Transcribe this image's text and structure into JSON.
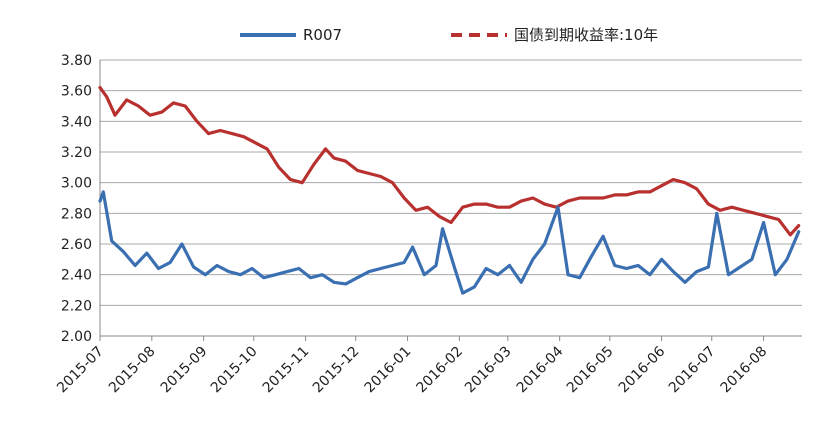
{
  "chart_data": {
    "type": "line",
    "ylim": [
      2.0,
      3.8
    ],
    "y_ticks": [
      "2.00",
      "2.20",
      "2.40",
      "2.60",
      "2.80",
      "3.00",
      "3.20",
      "3.40",
      "3.60",
      "3.80"
    ],
    "x_ticks": [
      "2015-07",
      "2015-08",
      "2015-09",
      "2015-10",
      "2015-11",
      "2015-12",
      "2016-01",
      "2016-02",
      "2016-03",
      "2016-04",
      "2016-05",
      "2016-06",
      "2016-07",
      "2016-08"
    ],
    "grid": true,
    "legend_position": "top",
    "series": [
      {
        "name": "R007",
        "color": "#3a6fb2",
        "style": "solid",
        "x": [
          "2015-07-01",
          "2015-07-03",
          "2015-07-08",
          "2015-07-15",
          "2015-07-22",
          "2015-07-29",
          "2015-08-05",
          "2015-08-12",
          "2015-08-19",
          "2015-08-26",
          "2015-09-02",
          "2015-09-09",
          "2015-09-16",
          "2015-09-23",
          "2015-09-30",
          "2015-10-07",
          "2015-10-14",
          "2015-10-21",
          "2015-10-28",
          "2015-11-04",
          "2015-11-11",
          "2015-11-18",
          "2015-11-25",
          "2015-12-02",
          "2015-12-09",
          "2015-12-16",
          "2015-12-23",
          "2015-12-30",
          "2016-01-04",
          "2016-01-11",
          "2016-01-18",
          "2016-01-22",
          "2016-01-29",
          "2016-02-03",
          "2016-02-10",
          "2016-02-17",
          "2016-02-24",
          "2016-03-02",
          "2016-03-09",
          "2016-03-16",
          "2016-03-23",
          "2016-03-31",
          "2016-04-06",
          "2016-04-13",
          "2016-04-20",
          "2016-04-27",
          "2016-05-04",
          "2016-05-11",
          "2016-05-18",
          "2016-05-25",
          "2016-06-01",
          "2016-06-08",
          "2016-06-15",
          "2016-06-22",
          "2016-06-29",
          "2016-07-04",
          "2016-07-11",
          "2016-07-18",
          "2016-07-25",
          "2016-08-01",
          "2016-08-08",
          "2016-08-15",
          "2016-08-22"
        ],
        "values": [
          2.88,
          2.94,
          2.62,
          2.55,
          2.46,
          2.54,
          2.44,
          2.48,
          2.6,
          2.45,
          2.4,
          2.46,
          2.42,
          2.4,
          2.44,
          2.38,
          2.4,
          2.42,
          2.44,
          2.38,
          2.4,
          2.35,
          2.34,
          2.38,
          2.42,
          2.44,
          2.46,
          2.48,
          2.58,
          2.4,
          2.46,
          2.7,
          2.45,
          2.28,
          2.32,
          2.44,
          2.4,
          2.46,
          2.35,
          2.5,
          2.6,
          2.84,
          2.4,
          2.38,
          2.52,
          2.65,
          2.46,
          2.44,
          2.46,
          2.4,
          2.5,
          2.42,
          2.35,
          2.42,
          2.45,
          2.8,
          2.4,
          2.45,
          2.5,
          2.74,
          2.4,
          2.5,
          2.68
        ]
      },
      {
        "name": "国债到期收益率:10年",
        "color": "#b8312f",
        "style": "dashed",
        "x": [
          "2015-07-01",
          "2015-07-05",
          "2015-07-10",
          "2015-07-17",
          "2015-07-24",
          "2015-07-31",
          "2015-08-07",
          "2015-08-14",
          "2015-08-21",
          "2015-08-28",
          "2015-09-04",
          "2015-09-11",
          "2015-09-18",
          "2015-09-25",
          "2015-10-02",
          "2015-10-09",
          "2015-10-16",
          "2015-10-23",
          "2015-10-30",
          "2015-11-06",
          "2015-11-13",
          "2015-11-18",
          "2015-11-25",
          "2015-12-02",
          "2015-12-09",
          "2015-12-16",
          "2015-12-23",
          "2015-12-30",
          "2016-01-06",
          "2016-01-13",
          "2016-01-20",
          "2016-01-27",
          "2016-02-03",
          "2016-02-10",
          "2016-02-17",
          "2016-02-24",
          "2016-03-02",
          "2016-03-09",
          "2016-03-16",
          "2016-03-23",
          "2016-03-30",
          "2016-04-06",
          "2016-04-13",
          "2016-04-20",
          "2016-04-27",
          "2016-05-04",
          "2016-05-11",
          "2016-05-18",
          "2016-05-25",
          "2016-06-01",
          "2016-06-08",
          "2016-06-15",
          "2016-06-22",
          "2016-06-29",
          "2016-07-06",
          "2016-07-13",
          "2016-07-20",
          "2016-07-27",
          "2016-08-03",
          "2016-08-10",
          "2016-08-17",
          "2016-08-22"
        ],
        "values": [
          3.62,
          3.56,
          3.44,
          3.54,
          3.5,
          3.44,
          3.46,
          3.52,
          3.5,
          3.4,
          3.32,
          3.34,
          3.32,
          3.3,
          3.26,
          3.22,
          3.1,
          3.02,
          3.0,
          3.12,
          3.22,
          3.16,
          3.14,
          3.08,
          3.06,
          3.04,
          3.0,
          2.9,
          2.82,
          2.84,
          2.78,
          2.74,
          2.84,
          2.86,
          2.86,
          2.84,
          2.84,
          2.88,
          2.9,
          2.86,
          2.84,
          2.88,
          2.9,
          2.9,
          2.9,
          2.92,
          2.92,
          2.94,
          2.94,
          2.98,
          3.02,
          3.0,
          2.96,
          2.86,
          2.82,
          2.84,
          2.82,
          2.8,
          2.78,
          2.76,
          2.66,
          2.72
        ]
      }
    ]
  }
}
